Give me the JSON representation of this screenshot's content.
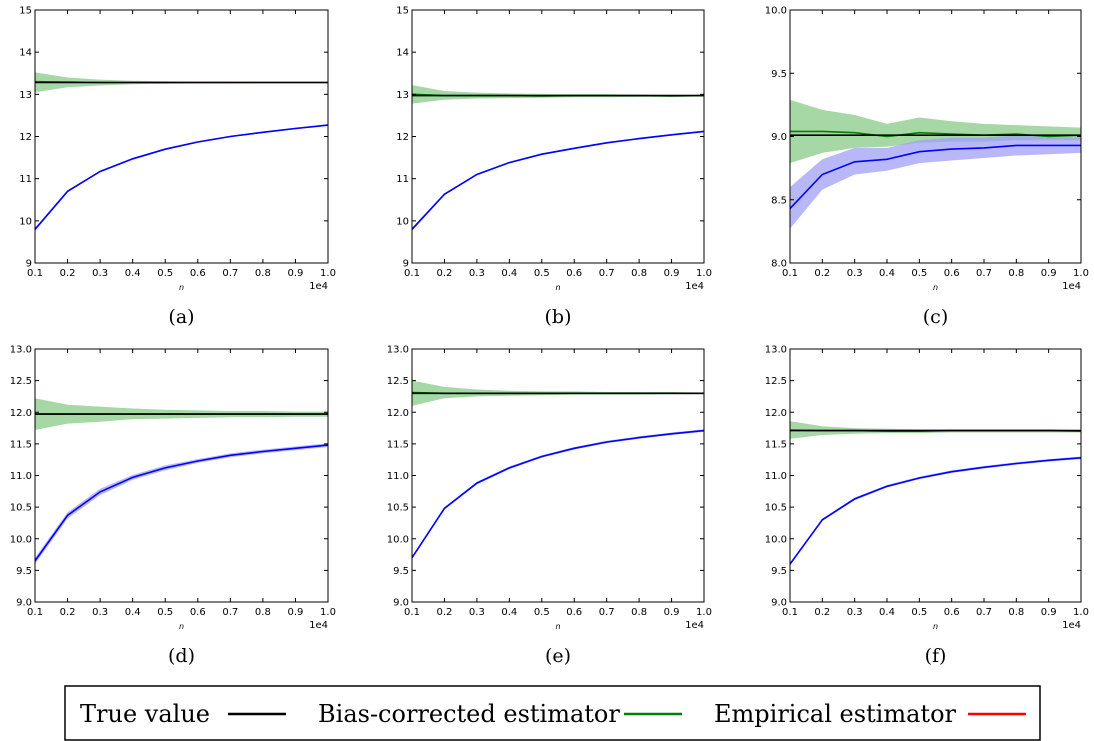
{
  "colors": {
    "true_value": "#000000",
    "bias_corrected": "#008000",
    "bias_corrected_band": "#8fce8f",
    "empirical_blue": "#0000ff",
    "empirical_band": "#a0a0f5",
    "legend_empirical": "#ff0000"
  },
  "legend": {
    "items": [
      {
        "label": "True value",
        "color": "#000000"
      },
      {
        "label": "Bias-corrected estimator",
        "color": "#008000"
      },
      {
        "label": "Empirical estimator",
        "color": "#ff0000"
      }
    ]
  },
  "chart_data": [
    {
      "type": "line",
      "caption": "(a)",
      "xlabel": "n",
      "x_multiplier": "1e4",
      "xlim": [
        0.1,
        1.0
      ],
      "ylim": [
        9,
        15
      ],
      "yticks": [
        "9",
        "10",
        "11",
        "12",
        "13",
        "14",
        "15"
      ],
      "xticks": [
        "0.1",
        "0.2",
        "0.3",
        "0.4",
        "0.5",
        "0.6",
        "0.7",
        "0.8",
        "0.9",
        "1.0"
      ],
      "x": [
        0.1,
        0.2,
        0.3,
        0.4,
        0.5,
        0.6,
        0.7,
        0.8,
        0.9,
        1.0
      ],
      "series": [
        {
          "role": "true",
          "values": [
            13.28,
            13.28,
            13.28,
            13.28,
            13.28,
            13.28,
            13.28,
            13.28,
            13.28,
            13.28
          ]
        },
        {
          "role": "bias_corrected",
          "values": [
            13.3,
            13.29,
            13.28,
            13.28,
            13.28,
            13.28,
            13.28,
            13.28,
            13.28,
            13.28
          ],
          "lower": [
            13.05,
            13.17,
            13.21,
            13.24,
            13.25,
            13.26,
            13.26,
            13.27,
            13.27,
            13.27
          ],
          "upper": [
            13.52,
            13.4,
            13.35,
            13.32,
            13.31,
            13.3,
            13.3,
            13.29,
            13.29,
            13.29
          ]
        },
        {
          "role": "empirical",
          "values": [
            9.8,
            10.7,
            11.17,
            11.47,
            11.7,
            11.87,
            12.0,
            12.1,
            12.19,
            12.27
          ],
          "lower": [
            9.76,
            10.68,
            11.15,
            11.45,
            11.68,
            11.85,
            11.98,
            12.08,
            12.17,
            12.25
          ],
          "upper": [
            9.84,
            10.72,
            11.19,
            11.49,
            11.72,
            11.89,
            12.02,
            12.12,
            12.21,
            12.29
          ]
        }
      ]
    },
    {
      "type": "line",
      "caption": "(b)",
      "xlabel": "n",
      "x_multiplier": "1e4",
      "xlim": [
        0.1,
        1.0
      ],
      "ylim": [
        9,
        15
      ],
      "yticks": [
        "9",
        "10",
        "11",
        "12",
        "13",
        "14",
        "15"
      ],
      "xticks": [
        "0.1",
        "0.2",
        "0.3",
        "0.4",
        "0.5",
        "0.6",
        "0.7",
        "0.8",
        "0.9",
        "1.0"
      ],
      "x": [
        0.1,
        0.2,
        0.3,
        0.4,
        0.5,
        0.6,
        0.7,
        0.8,
        0.9,
        1.0
      ],
      "series": [
        {
          "role": "true",
          "values": [
            12.97,
            12.97,
            12.97,
            12.97,
            12.97,
            12.97,
            12.97,
            12.97,
            12.97,
            12.97
          ]
        },
        {
          "role": "bias_corrected",
          "values": [
            13.0,
            12.97,
            12.97,
            12.97,
            12.96,
            12.97,
            12.97,
            12.97,
            12.96,
            12.97
          ],
          "lower": [
            12.78,
            12.87,
            12.9,
            12.91,
            12.92,
            12.93,
            12.93,
            12.94,
            12.94,
            12.95
          ],
          "upper": [
            13.22,
            13.08,
            13.04,
            13.02,
            13.01,
            13.0,
            13.0,
            12.99,
            12.99,
            12.99
          ]
        },
        {
          "role": "empirical",
          "values": [
            9.8,
            10.63,
            11.1,
            11.38,
            11.58,
            11.72,
            11.85,
            11.95,
            12.04,
            12.12
          ],
          "lower": [
            9.76,
            10.61,
            11.08,
            11.36,
            11.56,
            11.7,
            11.83,
            11.93,
            12.02,
            12.1
          ],
          "upper": [
            9.84,
            10.65,
            11.12,
            11.4,
            11.6,
            11.74,
            11.87,
            11.97,
            12.06,
            12.14
          ]
        }
      ]
    },
    {
      "type": "line",
      "caption": "(c)",
      "xlabel": "n",
      "x_multiplier": "1e4",
      "xlim": [
        0.1,
        1.0
      ],
      "ylim": [
        8,
        10
      ],
      "yticks": [
        "8.0",
        "8.5",
        "9.0",
        "9.5",
        "10.0"
      ],
      "xticks": [
        "0.1",
        "0.2",
        "0.3",
        "0.4",
        "0.5",
        "0.6",
        "0.7",
        "0.8",
        "0.9",
        "1.0"
      ],
      "x": [
        0.1,
        0.2,
        0.3,
        0.4,
        0.5,
        0.6,
        0.7,
        0.8,
        0.9,
        1.0
      ],
      "series": [
        {
          "role": "true",
          "values": [
            9.01,
            9.01,
            9.01,
            9.01,
            9.01,
            9.01,
            9.01,
            9.01,
            9.01,
            9.01
          ]
        },
        {
          "role": "bias_corrected",
          "values": [
            9.04,
            9.04,
            9.03,
            9.0,
            9.03,
            9.02,
            9.01,
            9.02,
            9.0,
            9.01
          ],
          "lower": [
            8.79,
            8.87,
            8.91,
            8.92,
            8.95,
            8.96,
            8.96,
            8.97,
            8.97,
            8.97
          ],
          "upper": [
            9.29,
            9.21,
            9.17,
            9.1,
            9.15,
            9.12,
            9.1,
            9.09,
            9.08,
            9.07
          ]
        },
        {
          "role": "empirical",
          "values": [
            8.43,
            8.7,
            8.8,
            8.82,
            8.88,
            8.9,
            8.91,
            8.93,
            8.93,
            8.93
          ],
          "lower": [
            8.27,
            8.58,
            8.7,
            8.73,
            8.79,
            8.81,
            8.83,
            8.85,
            8.86,
            8.87
          ],
          "upper": [
            8.6,
            8.82,
            8.91,
            8.91,
            8.97,
            8.99,
            8.99,
            9.01,
            9.0,
            8.99
          ]
        }
      ]
    },
    {
      "type": "line",
      "caption": "(d)",
      "xlabel": "n",
      "x_multiplier": "1e4",
      "xlim": [
        0.1,
        1.0
      ],
      "ylim": [
        9.0,
        13.0
      ],
      "yticks": [
        "9.0",
        "9.5",
        "10.0",
        "10.5",
        "11.0",
        "11.5",
        "12.0",
        "12.5",
        "13.0"
      ],
      "xticks": [
        "0.1",
        "0.2",
        "0.3",
        "0.4",
        "0.5",
        "0.6",
        "0.7",
        "0.8",
        "0.9",
        "1.0"
      ],
      "x": [
        0.1,
        0.2,
        0.3,
        0.4,
        0.5,
        0.6,
        0.7,
        0.8,
        0.9,
        1.0
      ],
      "series": [
        {
          "role": "true",
          "values": [
            11.97,
            11.97,
            11.97,
            11.97,
            11.97,
            11.97,
            11.97,
            11.97,
            11.97,
            11.97
          ]
        },
        {
          "role": "bias_corrected",
          "values": [
            11.97,
            11.97,
            11.97,
            11.97,
            11.97,
            11.97,
            11.97,
            11.97,
            11.97,
            11.97
          ],
          "lower": [
            11.72,
            11.82,
            11.85,
            11.89,
            11.9,
            11.91,
            11.92,
            11.92,
            11.93,
            11.93
          ],
          "upper": [
            12.22,
            12.12,
            12.09,
            12.06,
            12.04,
            12.03,
            12.02,
            12.02,
            12.01,
            12.01
          ]
        },
        {
          "role": "empirical",
          "values": [
            9.65,
            10.37,
            10.74,
            10.97,
            11.12,
            11.23,
            11.32,
            11.38,
            11.43,
            11.48
          ],
          "lower": [
            9.6,
            10.32,
            10.69,
            10.93,
            11.08,
            11.2,
            11.29,
            11.35,
            11.4,
            11.45
          ],
          "upper": [
            9.7,
            10.42,
            10.79,
            11.01,
            11.16,
            11.26,
            11.35,
            11.41,
            11.46,
            11.51
          ]
        }
      ]
    },
    {
      "type": "line",
      "caption": "(e)",
      "xlabel": "n",
      "x_multiplier": "1e4",
      "xlim": [
        0.1,
        1.0
      ],
      "ylim": [
        9.0,
        13.0
      ],
      "yticks": [
        "9.0",
        "9.5",
        "10.0",
        "10.5",
        "11.0",
        "11.5",
        "12.0",
        "12.5",
        "13.0"
      ],
      "xticks": [
        "0.1",
        "0.2",
        "0.3",
        "0.4",
        "0.5",
        "0.6",
        "0.7",
        "0.8",
        "0.9",
        "1.0"
      ],
      "x": [
        0.1,
        0.2,
        0.3,
        0.4,
        0.5,
        0.6,
        0.7,
        0.8,
        0.9,
        1.0
      ],
      "series": [
        {
          "role": "true",
          "values": [
            12.3,
            12.3,
            12.3,
            12.3,
            12.3,
            12.3,
            12.3,
            12.3,
            12.3,
            12.3
          ]
        },
        {
          "role": "bias_corrected",
          "values": [
            12.31,
            12.3,
            12.3,
            12.3,
            12.3,
            12.3,
            12.3,
            12.3,
            12.3,
            12.3
          ],
          "lower": [
            12.1,
            12.22,
            12.25,
            12.26,
            12.27,
            12.28,
            12.28,
            12.28,
            12.29,
            12.29
          ],
          "upper": [
            12.5,
            12.4,
            12.36,
            12.34,
            12.33,
            12.33,
            12.32,
            12.32,
            12.32,
            12.31
          ]
        },
        {
          "role": "empirical",
          "values": [
            9.7,
            10.48,
            10.88,
            11.12,
            11.3,
            11.43,
            11.53,
            11.6,
            11.66,
            11.71
          ],
          "lower": [
            9.68,
            10.46,
            10.86,
            11.1,
            11.28,
            11.41,
            11.51,
            11.58,
            11.64,
            11.69
          ],
          "upper": [
            9.72,
            10.5,
            10.9,
            11.14,
            11.32,
            11.45,
            11.55,
            11.62,
            11.68,
            11.73
          ]
        }
      ]
    },
    {
      "type": "line",
      "caption": "(f)",
      "xlabel": "n",
      "x_multiplier": "1e4",
      "xlim": [
        0.1,
        1.0
      ],
      "ylim": [
        9.0,
        13.0
      ],
      "yticks": [
        "9.0",
        "9.5",
        "10.0",
        "10.5",
        "11.0",
        "11.5",
        "12.0",
        "12.5",
        "13.0"
      ],
      "xticks": [
        "0.1",
        "0.2",
        "0.3",
        "0.4",
        "0.5",
        "0.6",
        "0.7",
        "0.8",
        "0.9",
        "1.0"
      ],
      "x": [
        0.1,
        0.2,
        0.3,
        0.4,
        0.5,
        0.6,
        0.7,
        0.8,
        0.9,
        1.0
      ],
      "series": [
        {
          "role": "true",
          "values": [
            11.71,
            11.71,
            11.71,
            11.71,
            11.71,
            11.71,
            11.71,
            11.71,
            11.71,
            11.71
          ]
        },
        {
          "role": "bias_corrected",
          "values": [
            11.72,
            11.71,
            11.71,
            11.7,
            11.7,
            11.71,
            11.71,
            11.71,
            11.71,
            11.7
          ],
          "lower": [
            11.58,
            11.64,
            11.66,
            11.67,
            11.67,
            11.68,
            11.68,
            11.68,
            11.68,
            11.68
          ],
          "upper": [
            11.86,
            11.78,
            11.75,
            11.74,
            11.73,
            11.73,
            11.73,
            11.73,
            11.73,
            11.72
          ]
        },
        {
          "role": "empirical",
          "values": [
            9.6,
            10.3,
            10.63,
            10.83,
            10.96,
            11.06,
            11.13,
            11.19,
            11.24,
            11.28
          ],
          "lower": [
            9.58,
            10.28,
            10.61,
            10.81,
            10.94,
            11.04,
            11.11,
            11.17,
            11.22,
            11.26
          ],
          "upper": [
            9.62,
            10.32,
            10.65,
            10.85,
            10.98,
            11.08,
            11.15,
            11.21,
            11.26,
            11.3
          ]
        }
      ]
    }
  ]
}
